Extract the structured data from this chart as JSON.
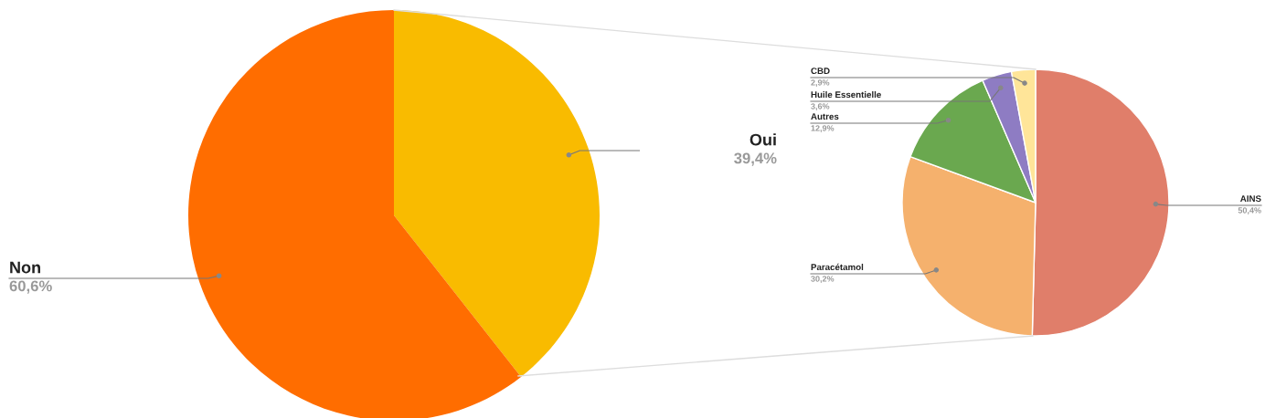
{
  "chart_data": [
    {
      "type": "pie",
      "categories": [
        "Oui",
        "Non"
      ],
      "values": [
        39.4,
        60.6
      ],
      "colors": [
        "#f9bb00",
        "#ff6d00"
      ],
      "value_labels": [
        "39,4%",
        "60,6%"
      ]
    },
    {
      "type": "pie",
      "categories": [
        "AINS",
        "Paracétamol",
        "Autres",
        "Huile Essentielle",
        "CBD"
      ],
      "values": [
        50.4,
        30.2,
        12.9,
        3.6,
        2.9
      ],
      "colors": [
        "#e07e6a",
        "#f5b16d",
        "#6aa84f",
        "#8e7cc3",
        "#ffe599"
      ],
      "value_labels": [
        "50,4%",
        "30,2%",
        "12,9%",
        "3,6%",
        "2,9%"
      ]
    }
  ]
}
